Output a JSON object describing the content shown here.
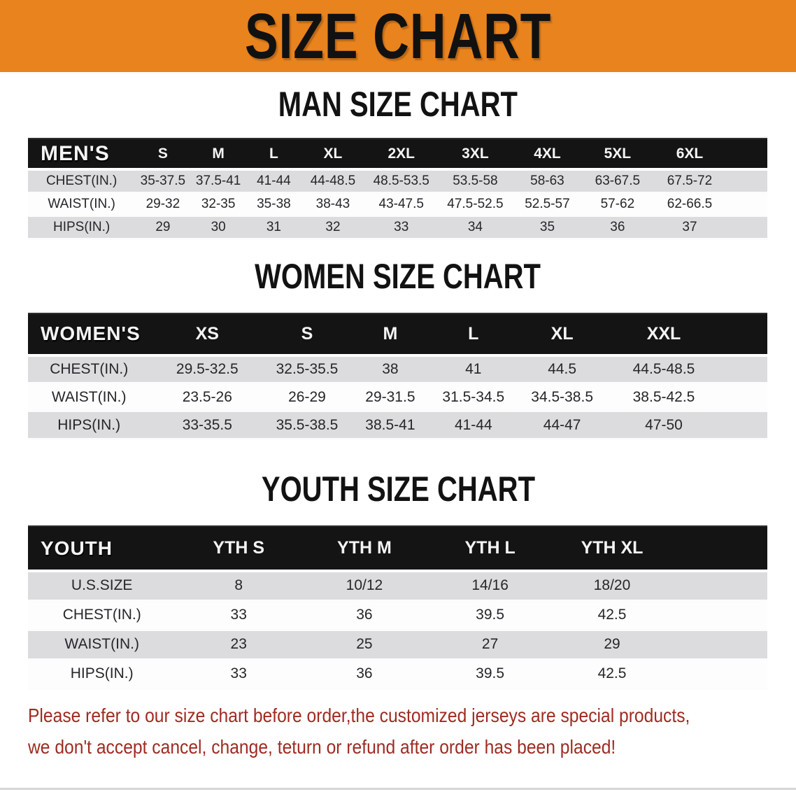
{
  "banner": {
    "title": "SIZE CHART"
  },
  "colors": {
    "banner_orange": "#e9831e",
    "table_header_black": "#141414",
    "row_stripe_gray": "#dcdcde",
    "footer_red": "#9e2b22",
    "text_dark": "#26262b"
  },
  "sections": [
    {
      "id": "men",
      "heading": "MAN SIZE CHART",
      "header_label": "MEN'S",
      "columns": [
        "S",
        "M",
        "L",
        "XL",
        "2XL",
        "3XL",
        "4XL",
        "5XL",
        "6XL"
      ],
      "rows": [
        {
          "label": "CHEST(IN.)",
          "values": [
            "35-37.5",
            "37.5-41",
            "41-44",
            "44-48.5",
            "48.5-53.5",
            "53.5-58",
            "58-63",
            "63-67.5",
            "67.5-72"
          ]
        },
        {
          "label": "WAIST(IN.)",
          "values": [
            "29-32",
            "32-35",
            "35-38",
            "38-43",
            "43-47.5",
            "47.5-52.5",
            "52.5-57",
            "57-62",
            "62-66.5"
          ]
        },
        {
          "label": "HIPS(IN.)",
          "values": [
            "29",
            "30",
            "31",
            "32",
            "33",
            "34",
            "35",
            "36",
            "37"
          ]
        }
      ]
    },
    {
      "id": "women",
      "heading": "WOMEN SIZE CHART",
      "header_label": "WOMEN'S",
      "columns": [
        "XS",
        "S",
        "M",
        "L",
        "XL",
        "XXL"
      ],
      "rows": [
        {
          "label": "CHEST(IN.)",
          "values": [
            "29.5-32.5",
            "32.5-35.5",
            "38",
            "41",
            "44.5",
            "44.5-48.5"
          ]
        },
        {
          "label": "WAIST(IN.)",
          "values": [
            "23.5-26",
            "26-29",
            "29-31.5",
            "31.5-34.5",
            "34.5-38.5",
            "38.5-42.5"
          ]
        },
        {
          "label": "HIPS(IN.)",
          "values": [
            "33-35.5",
            "35.5-38.5",
            "38.5-41",
            "41-44",
            "44-47",
            "47-50"
          ]
        }
      ]
    },
    {
      "id": "youth",
      "heading": "YOUTH SIZE CHART",
      "header_label": "YOUTH",
      "columns": [
        "YTH S",
        "YTH M",
        "YTH L",
        "YTH XL"
      ],
      "rows": [
        {
          "label": "U.S.SIZE",
          "values": [
            "8",
            "10/12",
            "14/16",
            "18/20"
          ]
        },
        {
          "label": "CHEST(IN.)",
          "values": [
            "33",
            "36",
            "39.5",
            "42.5"
          ]
        },
        {
          "label": "WAIST(IN.)",
          "values": [
            "23",
            "25",
            "27",
            "29"
          ]
        },
        {
          "label": "HIPS(IN.)",
          "values": [
            "33",
            "36",
            "39.5",
            "42.5"
          ]
        }
      ]
    }
  ],
  "footer": {
    "line1": "Please refer to our size chart before order,the customized jerseys are special products,",
    "line2": "we don't accept cancel, change, teturn or refund after order has been placed!"
  }
}
